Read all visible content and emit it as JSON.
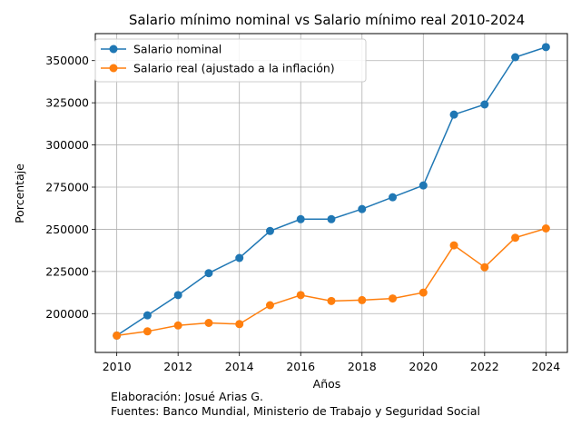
{
  "chart_data": {
    "type": "line",
    "title": "Salario mínimo nominal vs Salario mínimo real 2010-2024",
    "xlabel": "Años",
    "ylabel": "Porcentaje",
    "x": [
      2010,
      2011,
      2012,
      2013,
      2014,
      2015,
      2016,
      2017,
      2018,
      2019,
      2020,
      2021,
      2022,
      2023,
      2024
    ],
    "xlim": [
      2009.3,
      2024.7
    ],
    "ylim": [
      177000,
      366000
    ],
    "xticks": [
      2010,
      2012,
      2014,
      2016,
      2018,
      2020,
      2022,
      2024
    ],
    "yticks": [
      200000,
      225000,
      250000,
      275000,
      300000,
      325000,
      350000
    ],
    "grid": true,
    "legend_position": "upper-left",
    "series": [
      {
        "name": "Salario nominal",
        "color": "#1f77b4",
        "marker": "circle",
        "values": [
          187000,
          199000,
          211000,
          224000,
          233000,
          249000,
          256000,
          256000,
          262000,
          269000,
          276000,
          318000,
          324000,
          352000,
          358000
        ]
      },
      {
        "name": "Salario real (ajustado a la inflación)",
        "color": "#ff7f0e",
        "marker": "circle",
        "values": [
          187000,
          189500,
          193000,
          194500,
          193800,
          205000,
          211000,
          207500,
          208000,
          209000,
          212500,
          240500,
          227500,
          245000,
          250500
        ]
      }
    ]
  },
  "footnote": {
    "line1": "Elaboración: Josué Arias G.",
    "line2": "Fuentes: Banco Mundial, Ministerio de Trabajo y Seguridad Social"
  }
}
